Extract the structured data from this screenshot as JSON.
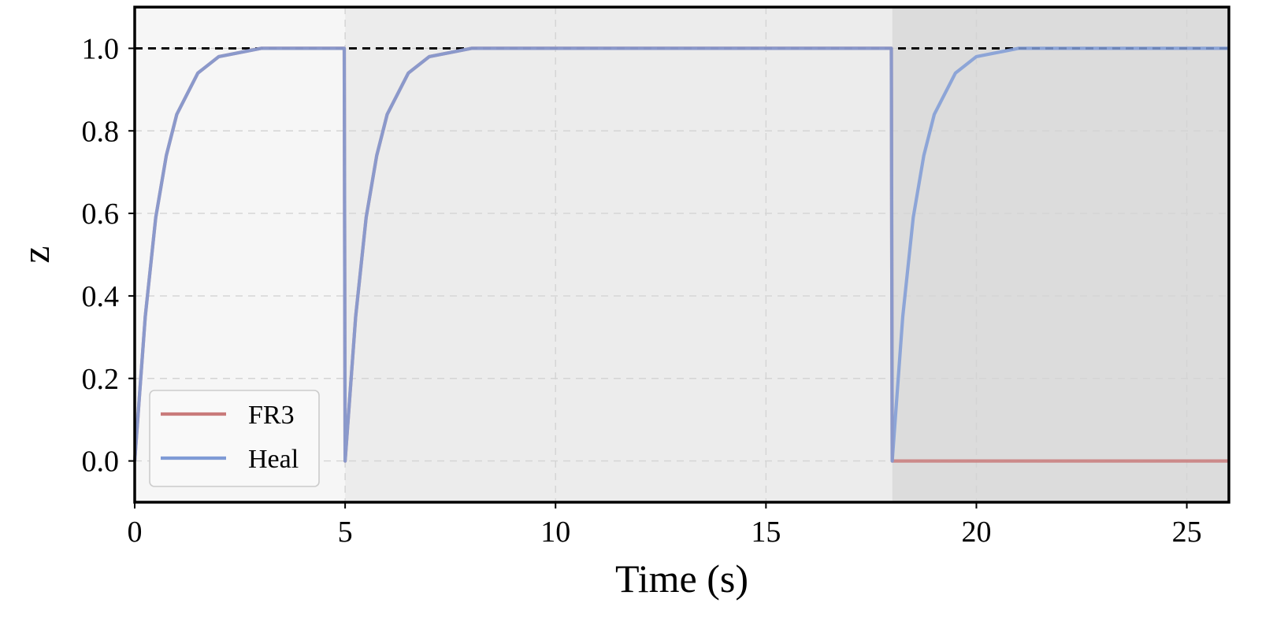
{
  "chart_data": {
    "type": "line",
    "title": "",
    "xlabel": "Time (s)",
    "ylabel": "z",
    "xlim": [
      0,
      26
    ],
    "ylim": [
      -0.1,
      1.1
    ],
    "xticks": [
      0,
      5,
      10,
      15,
      20,
      25
    ],
    "yticks": [
      0.0,
      0.2,
      0.4,
      0.6,
      0.8,
      1.0
    ],
    "xtick_labels": [
      "0",
      "5",
      "10",
      "15",
      "20",
      "25"
    ],
    "ytick_labels": [
      "0.0",
      "0.2",
      "0.4",
      "0.6",
      "0.8",
      "1.0"
    ],
    "grid": true,
    "legend_position": "lower-left",
    "reference_line": {
      "y": 1.0,
      "style": "dashed",
      "color": "#000000"
    },
    "background_regions": [
      {
        "x0": 0,
        "x1": 5,
        "color": "#f6f6f6"
      },
      {
        "x0": 5,
        "x1": 18,
        "color": "#ececec"
      },
      {
        "x0": 18,
        "x1": 26,
        "color": "#dcdcdc"
      }
    ],
    "series": [
      {
        "name": "FR3",
        "color": "#c97b7b",
        "x": [
          0,
          0.25,
          0.5,
          0.75,
          1.0,
          1.5,
          2.0,
          2.5,
          3.0,
          4.0,
          4.98,
          5.0,
          5.25,
          5.5,
          5.75,
          6.0,
          6.5,
          7.0,
          7.5,
          8.0,
          9.0,
          10.0,
          12.0,
          15.0,
          17.98,
          18.0,
          20.0,
          22.0,
          24.0,
          26.0
        ],
        "y": [
          0.0,
          0.35,
          0.59,
          0.74,
          0.84,
          0.94,
          0.98,
          0.99,
          1.0,
          1.0,
          1.0,
          0.0,
          0.35,
          0.59,
          0.74,
          0.84,
          0.94,
          0.98,
          0.99,
          1.0,
          1.0,
          1.0,
          1.0,
          1.0,
          1.0,
          0.0,
          0.0,
          0.0,
          0.0,
          0.0
        ]
      },
      {
        "name": "Heal",
        "color": "#7f9bd6",
        "x": [
          0,
          0.25,
          0.5,
          0.75,
          1.0,
          1.5,
          2.0,
          2.5,
          3.0,
          4.0,
          4.98,
          5.0,
          5.25,
          5.5,
          5.75,
          6.0,
          6.5,
          7.0,
          7.5,
          8.0,
          9.0,
          10.0,
          12.0,
          15.0,
          17.98,
          18.0,
          18.25,
          18.5,
          18.75,
          19.0,
          19.5,
          20.0,
          20.5,
          21.0,
          22.0,
          23.0,
          24.0,
          26.0
        ],
        "y": [
          0.0,
          0.35,
          0.59,
          0.74,
          0.84,
          0.94,
          0.98,
          0.99,
          1.0,
          1.0,
          1.0,
          0.0,
          0.35,
          0.59,
          0.74,
          0.84,
          0.94,
          0.98,
          0.99,
          1.0,
          1.0,
          1.0,
          1.0,
          1.0,
          1.0,
          0.0,
          0.35,
          0.59,
          0.74,
          0.84,
          0.94,
          0.98,
          0.99,
          1.0,
          1.0,
          1.0,
          1.0,
          1.0
        ]
      }
    ]
  }
}
